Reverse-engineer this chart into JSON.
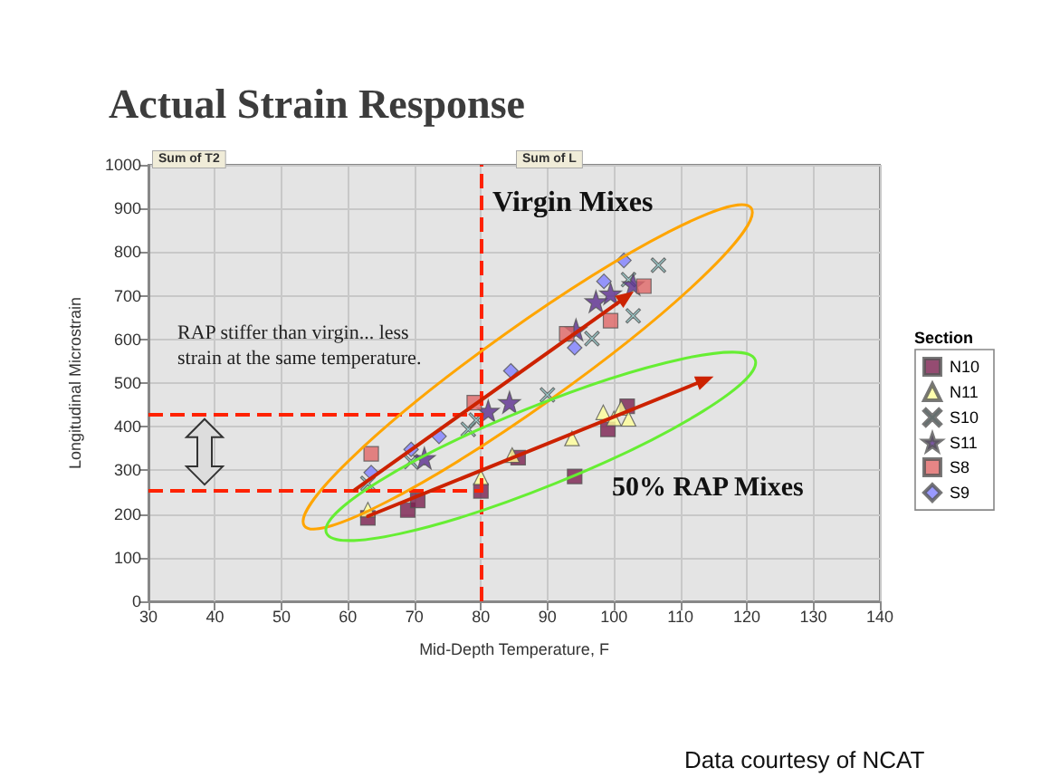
{
  "chart_data": {
    "type": "scatter",
    "title": "Actual Strain Response",
    "xlabel": "Mid-Depth Temperature, F",
    "ylabel": "Longitudinal Microstrain",
    "legend_title": "Section",
    "annotations": [
      "Virgin Mixes",
      "50% RAP Mixes",
      "RAP stiffer than virgin... less strain at the same temperature.",
      "Sum of T2",
      "Sum of L",
      "Data courtesy of NCAT"
    ],
    "xlim": [
      30,
      140
    ],
    "xticks": [
      30,
      40,
      50,
      60,
      70,
      80,
      90,
      100,
      110,
      120,
      130,
      140
    ],
    "ylim": [
      0,
      1000
    ],
    "yticks": [
      0,
      100,
      200,
      300,
      400,
      500,
      600,
      700,
      800,
      900,
      1000
    ],
    "grid": true,
    "legend": "right",
    "ref_lines": [
      {
        "axis": "x",
        "value": 80,
        "color": "#ff2200",
        "line_style": "dashed"
      },
      {
        "axis": "y",
        "value": 430,
        "color": "#ff2200",
        "line_style": "dashed"
      },
      {
        "axis": "y",
        "value": 255,
        "color": "#ff2200",
        "line_style": "dashed"
      }
    ],
    "series": [
      {
        "name": "N10",
        "color": "#7b1f4f",
        "marker": "square",
        "x": [
          63,
          69,
          70.5,
          80,
          85.6,
          94.1,
          99.1,
          102
        ],
        "values": [
          191,
          209,
          231,
          253,
          329,
          286,
          394,
          447
        ]
      },
      {
        "name": "N11",
        "color": "#ffff99",
        "marker": "triangle",
        "x": [
          63,
          80,
          84.7,
          93.7,
          98.4,
          100,
          101.1,
          102.2
        ],
        "values": [
          210,
          284,
          335,
          373,
          433,
          419,
          443,
          418
        ]
      },
      {
        "name": "S10",
        "color": "#8ecccc",
        "marker": "cross",
        "x": [
          63,
          69.5,
          78.1,
          79.3,
          90,
          96.7,
          102.2,
          102.9,
          106.7
        ],
        "values": [
          270,
          320,
          394,
          415,
          473,
          602,
          737,
          654,
          770
        ]
      },
      {
        "name": "S11",
        "color": "#5b2d8e",
        "marker": "star",
        "x": [
          71.5,
          81.1,
          84.3,
          94.3,
          97.3,
          99.5,
          102.9
        ],
        "values": [
          328,
          436,
          456,
          622,
          687,
          705,
          726
        ]
      },
      {
        "name": "S8",
        "color": "#e06666",
        "marker": "square",
        "x": [
          63.5,
          79,
          92.9,
          99.5,
          104.5
        ],
        "values": [
          338,
          455,
          613,
          643,
          722
        ]
      },
      {
        "name": "S9",
        "color": "#8080ff",
        "marker": "diamond",
        "x": [
          63.5,
          69.5,
          73.7,
          84.5,
          94.1,
          98.5,
          101.5
        ],
        "values": [
          295,
          348,
          378,
          528,
          581,
          733,
          781
        ]
      }
    ]
  }
}
